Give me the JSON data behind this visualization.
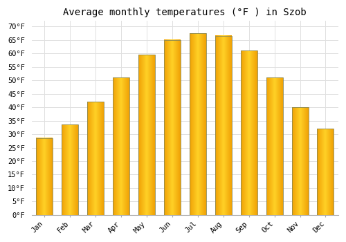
{
  "title": "Average monthly temperatures (°F ) in Szob",
  "months": [
    "Jan",
    "Feb",
    "Mar",
    "Apr",
    "May",
    "Jun",
    "Jul",
    "Aug",
    "Sep",
    "Oct",
    "Nov",
    "Dec"
  ],
  "values": [
    28.5,
    33.5,
    42,
    51,
    59.5,
    65,
    67.5,
    66.5,
    61,
    51,
    40,
    32
  ],
  "bar_color_center": "#FFD040",
  "bar_color_edge": "#F0A000",
  "bar_border_color": "#888855",
  "background_color": "#FFFFFF",
  "plot_bg_color": "#FFFFFF",
  "grid_color": "#E0E0E0",
  "ylim": [
    0,
    72
  ],
  "yticks": [
    0,
    5,
    10,
    15,
    20,
    25,
    30,
    35,
    40,
    45,
    50,
    55,
    60,
    65,
    70
  ],
  "title_fontsize": 10,
  "tick_fontsize": 7.5,
  "font_family": "monospace",
  "bar_width": 0.65
}
